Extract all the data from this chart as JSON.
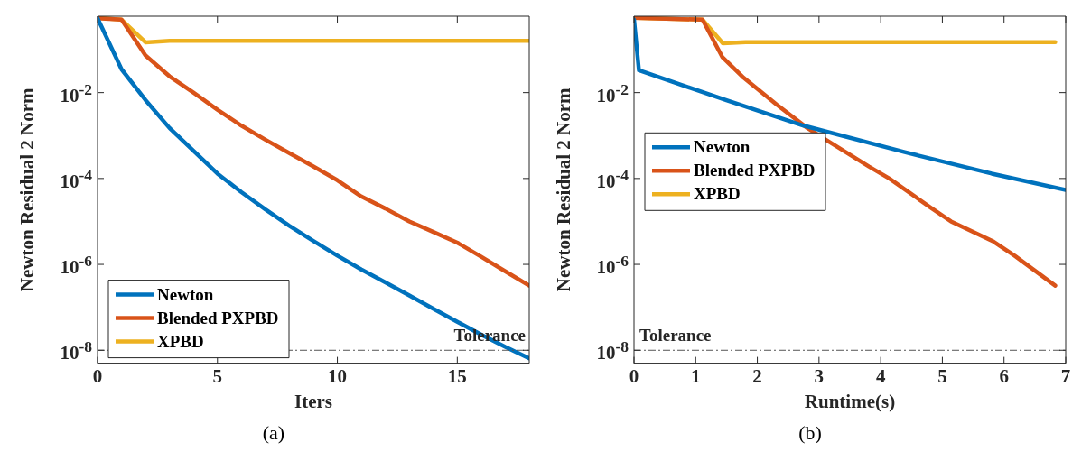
{
  "chart_data": [
    {
      "type": "line",
      "xlabel": "Iters",
      "ylabel": "Newton Residual 2 Norm",
      "annotations": [
        "(a)"
      ],
      "log": "y",
      "legend": "bottom left",
      "grid": false,
      "xlim": [
        0,
        18
      ],
      "xticks": [
        0,
        5,
        10,
        15
      ],
      "ylim": [
        5e-09,
        0.6
      ],
      "yticks": [
        {
          "value": 0.01,
          "label": "10$^{-2}$"
        },
        {
          "value": 0.0001,
          "label": "10$^{-4}$"
        },
        {
          "value": 1e-06,
          "label": "10$^{-6}$"
        },
        {
          "value": 1e-08,
          "label": "10$^{-8}$"
        }
      ],
      "ref_lines": [
        {
          "axis": "y",
          "value": 1e-08,
          "label": "Tolerance",
          "color": "#555555",
          "line_style": "dashed"
        }
      ],
      "x": [
        0,
        1,
        2,
        3,
        4,
        5,
        6,
        7,
        8,
        9,
        10,
        11,
        12,
        13,
        14,
        15,
        16,
        17,
        18
      ],
      "series": [
        {
          "name": "Newton",
          "color": "#0072bd",
          "values": [
            0.54,
            0.035,
            0.0067,
            0.0015,
            0.00044,
            0.00013,
            4.8e-05,
            1.9e-05,
            7.9e-06,
            3.5e-06,
            1.6e-06,
            7.6e-07,
            3.8e-07,
            1.9e-07,
            9.3e-08,
            4.6e-08,
            2.3e-08,
            1.2e-08,
            6.5e-09
          ]
        },
        {
          "name": "Blended PXPBD",
          "color": "#d95319",
          "values": [
            0.54,
            0.5,
            0.073,
            0.024,
            0.01,
            0.004,
            0.0017,
            0.0008,
            0.00039,
            0.00019,
            9.1e-05,
            3.8e-05,
            2e-05,
            1e-05,
            5.7e-06,
            3.2e-06,
            1.5e-06,
            6.9e-07,
            3.2e-07
          ]
        },
        {
          "name": "XPBD",
          "color": "#edb120",
          "values": [
            0.55,
            0.5,
            0.148,
            0.16,
            0.16,
            0.16,
            0.16,
            0.16,
            0.16,
            0.16,
            0.16,
            0.16,
            0.16,
            0.16,
            0.16,
            0.16,
            0.16,
            0.16,
            0.16
          ]
        }
      ]
    },
    {
      "type": "line",
      "xlabel": "Runtime(s)",
      "ylabel": "Newton Residual 2 Norm",
      "annotations": [
        "(b)"
      ],
      "log": "y",
      "legend": "left",
      "grid": false,
      "xlim": [
        0,
        7
      ],
      "xticks": [
        0,
        1,
        2,
        3,
        4,
        5,
        6,
        7
      ],
      "ylim": [
        5e-09,
        0.6
      ],
      "yticks": [
        {
          "value": 0.01,
          "label": "10$^{-2}$"
        },
        {
          "value": 0.0001,
          "label": "10$^{-4}$"
        },
        {
          "value": 1e-06,
          "label": "10$^{-6}$"
        },
        {
          "value": 1e-08,
          "label": "10$^{-8}$"
        }
      ],
      "ref_lines": [
        {
          "axis": "y",
          "value": 1e-08,
          "label": "Tolerance",
          "color": "#555555",
          "line_style": "dashed"
        }
      ],
      "series": [
        {
          "name": "Newton",
          "color": "#0072bd",
          "x": [
            0,
            0.08,
            1.5,
            2.75,
            4.39,
            5.8,
            7.0
          ],
          "values": [
            0.5,
            0.033,
            0.0066,
            0.0017,
            0.00041,
            0.00013,
            5.4e-05
          ]
        },
        {
          "name": "Blended PXPBD",
          "color": "#d95319",
          "x": [
            0,
            1.11,
            1.43,
            1.78,
            2.31,
            2.81,
            3.11,
            3.81,
            4.14,
            4.81,
            5.14,
            5.83,
            6.17,
            6.83
          ],
          "values": [
            0.55,
            0.5,
            0.068,
            0.022,
            0.0053,
            0.0015,
            0.0008,
            0.00019,
            0.0001,
            2.1e-05,
            1e-05,
            3.4e-06,
            1.6e-06,
            3.2e-07
          ]
        },
        {
          "name": "XPBD",
          "color": "#edb120",
          "x": [
            0,
            1.11,
            1.44,
            1.81,
            6.83
          ],
          "values": [
            0.55,
            0.5,
            0.14,
            0.15,
            0.15
          ]
        }
      ]
    }
  ]
}
